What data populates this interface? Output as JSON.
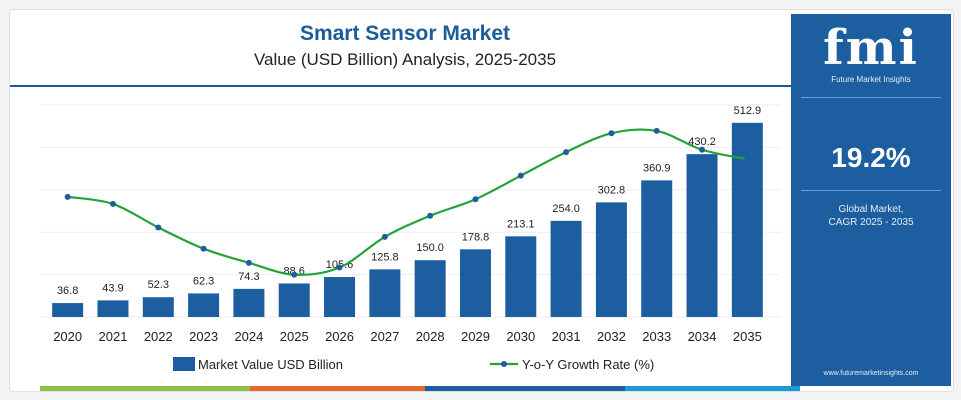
{
  "header": {
    "title": "Smart Sensor Market",
    "subtitle": "Value (USD Billion) Analysis, 2025-2035"
  },
  "side_panel": {
    "logo": "fmi",
    "logo_sub": "Future Market Insights",
    "cagr_value": "19.2%",
    "cagr_label_line1": "Global Market,",
    "cagr_label_line2": "CAGR 2025 - 2035",
    "website": "www.futuremarketinsights.com",
    "background_color": "#1c5e9f"
  },
  "legend": {
    "bar_label": "Market Value USD Billion",
    "line_label": "Y-o-Y Growth Rate (%)"
  },
  "colors": {
    "bar": "#1c5e9f",
    "line": "#22a33a",
    "line_marker": "#1c5e9f",
    "title": "#1a5d9a",
    "bottom_strip": [
      "#8cc04b",
      "#e8672a",
      "#1c5e9f",
      "#1a9bd7"
    ]
  },
  "chart_data": {
    "type": "bar",
    "categories": [
      "2020",
      "2021",
      "2022",
      "2023",
      "2024",
      "2025",
      "2026",
      "2027",
      "2028",
      "2029",
      "2030",
      "2031",
      "2032",
      "2033",
      "2034",
      "2035"
    ],
    "series": [
      {
        "name": "Market Value USD Billion",
        "type": "bar",
        "values": [
          36.8,
          43.9,
          52.3,
          62.3,
          74.3,
          88.6,
          105.6,
          125.8,
          150.0,
          178.8,
          213.1,
          254.0,
          302.8,
          360.9,
          430.2,
          512.9
        ],
        "labels": [
          "36.8",
          "43.9",
          "52.3",
          "62.3",
          "74.3",
          "88.6",
          "105.6",
          "125.8",
          "150.0",
          "178.8",
          "213.1",
          "254.0",
          "302.8",
          "360.9",
          "430.2",
          "512.9"
        ]
      },
      {
        "name": "Y-o-Y Growth Rate (%)",
        "type": "line",
        "values": [
          19.1,
          18.8,
          17.8,
          16.9,
          16.3,
          15.8,
          16.1,
          17.4,
          18.3,
          19.0,
          20.0,
          21.0,
          21.8,
          21.9,
          21.1,
          20.7
        ]
      }
    ],
    "ylim_bar": [
      0,
      560
    ],
    "ylim_line": [
      14,
      23
    ],
    "gridlines": "horizontal",
    "legend_position": "bottom"
  }
}
